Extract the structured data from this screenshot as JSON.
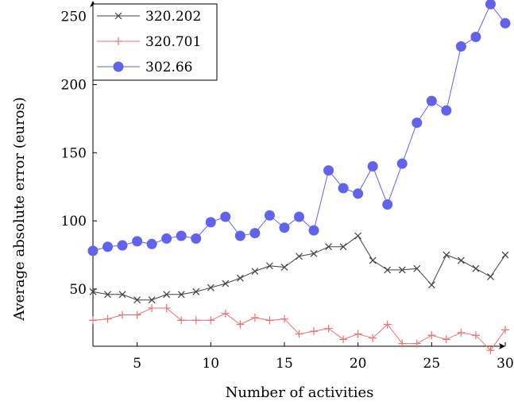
{
  "chart_data": {
    "type": "line",
    "xlabel": "Number of activities",
    "ylabel": "Average absolute error (euros)",
    "xlim": [
      2,
      30
    ],
    "ylim": [
      8,
      258
    ],
    "x_ticks": [
      5,
      10,
      15,
      20,
      25,
      30
    ],
    "y_ticks": [
      50,
      100,
      150,
      200,
      250
    ],
    "x": [
      2,
      3,
      4,
      5,
      6,
      7,
      8,
      9,
      10,
      11,
      12,
      13,
      14,
      15,
      16,
      17,
      18,
      19,
      20,
      21,
      22,
      23,
      24,
      25,
      26,
      27,
      28,
      29,
      30
    ],
    "legend_position": "top-left",
    "series": [
      {
        "name": "320.202",
        "color": "#404040",
        "marker": "x",
        "values": [
          48,
          46,
          46,
          42,
          42,
          46,
          46,
          48,
          51,
          54,
          58,
          63,
          67,
          66,
          74,
          76,
          81,
          81,
          89,
          71,
          64,
          64,
          65,
          53,
          75,
          71,
          65,
          59,
          75
        ]
      },
      {
        "name": "320.701",
        "color": "#f07070",
        "marker": "plus",
        "values": [
          27,
          28,
          31,
          31,
          36,
          36,
          27,
          27,
          27,
          32,
          24,
          29,
          27,
          28,
          17,
          19,
          21,
          13,
          17,
          14,
          24,
          10,
          10,
          16,
          13,
          18,
          16,
          5,
          20
        ]
      },
      {
        "name": "302.66",
        "color": "#6262f0",
        "marker": "circle",
        "values": [
          78,
          81,
          82,
          85,
          83,
          87,
          89,
          87,
          99,
          103,
          89,
          91,
          104,
          95,
          103,
          93,
          137,
          124,
          120,
          140,
          112,
          142,
          172,
          188,
          181,
          228,
          235,
          259,
          245
        ]
      }
    ]
  }
}
